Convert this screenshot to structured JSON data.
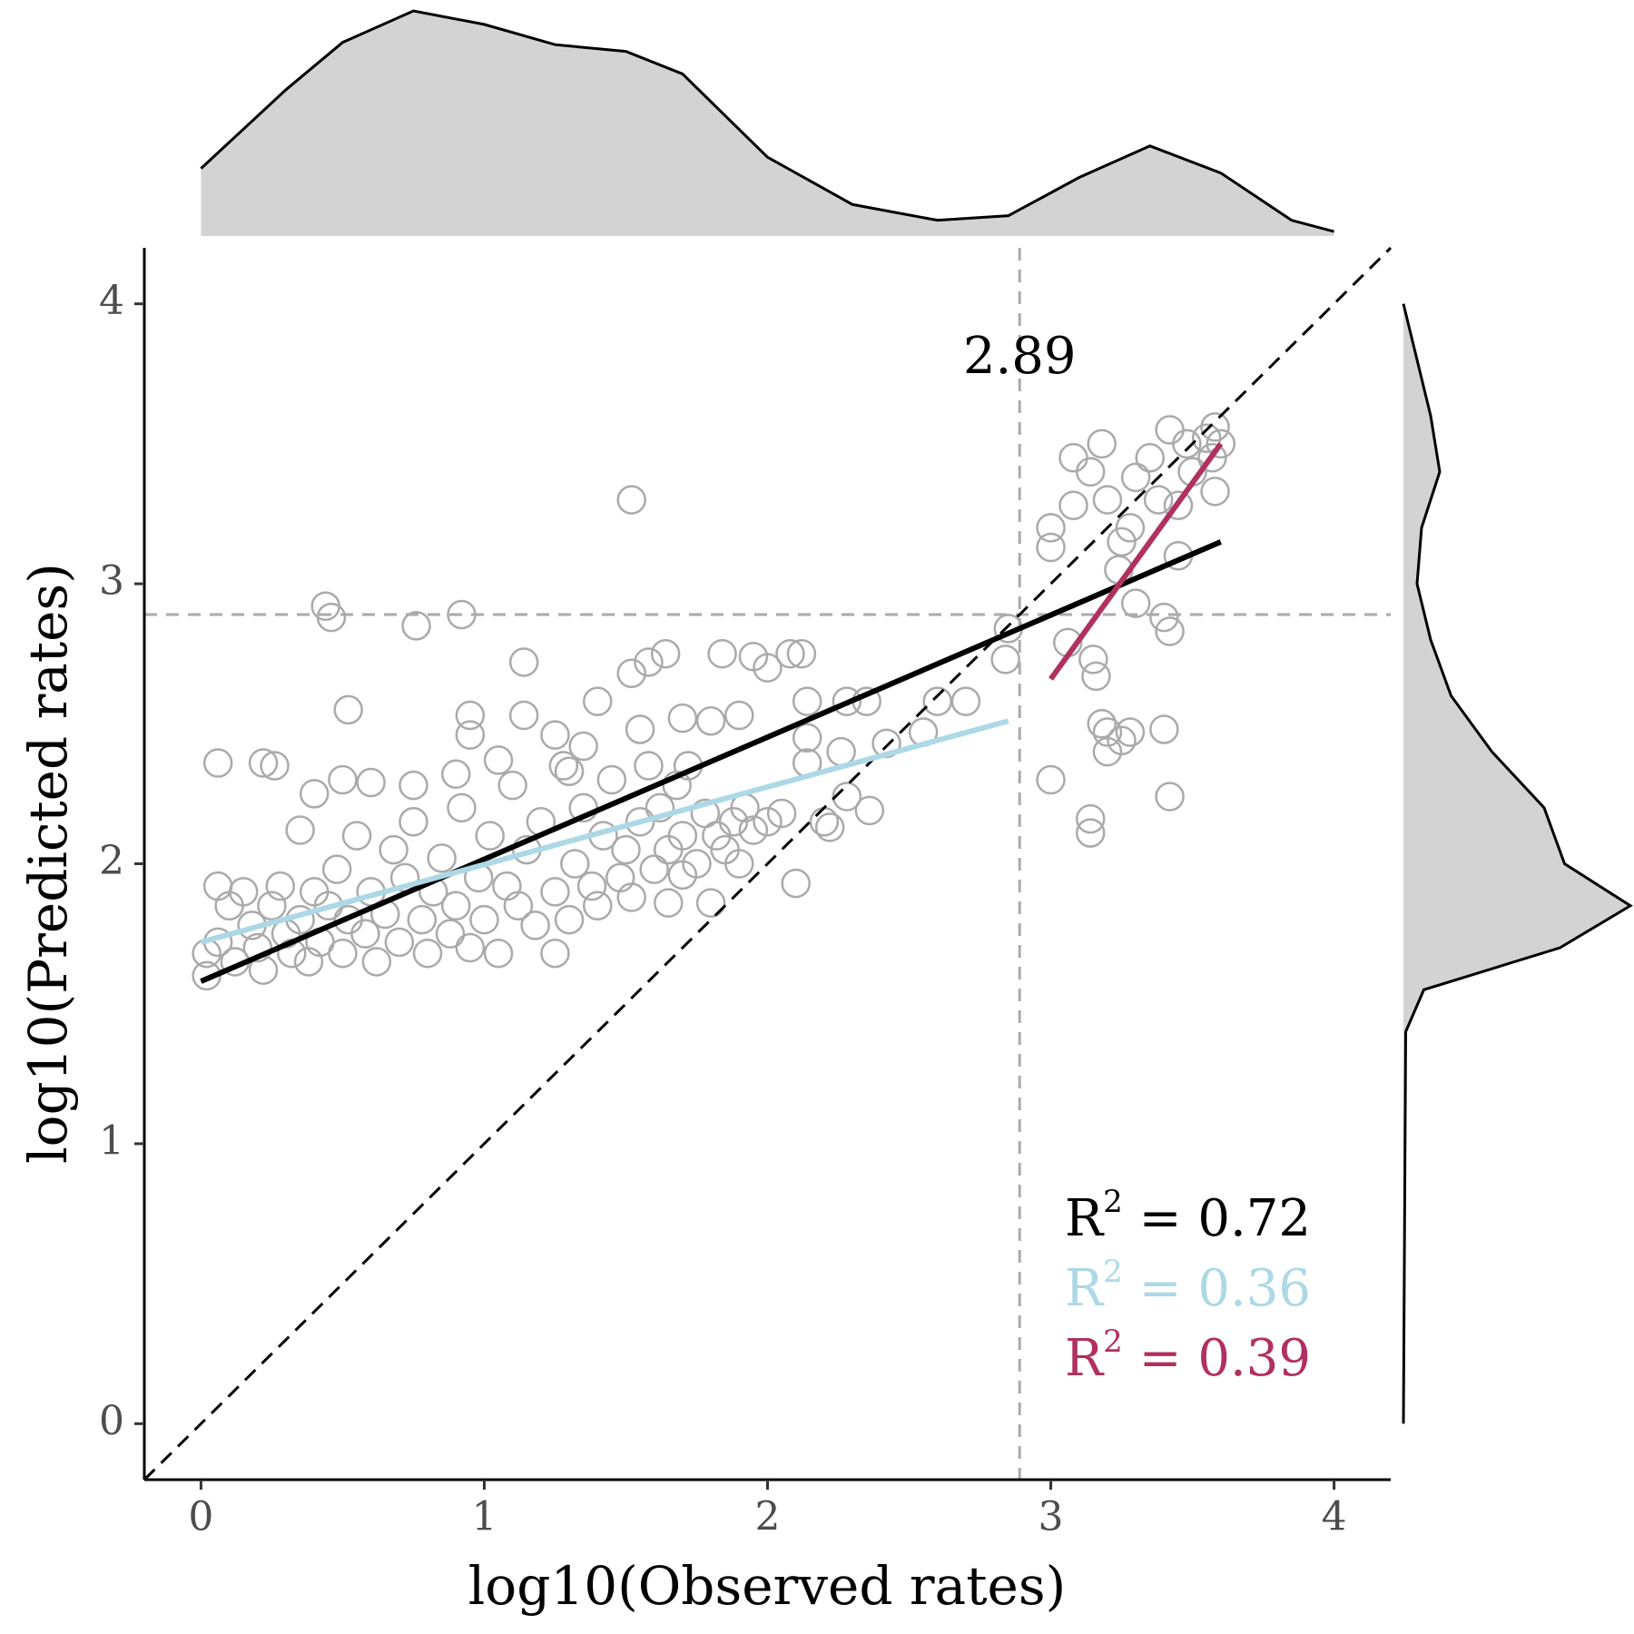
{
  "chart_data": {
    "type": "scatter",
    "x_label": "log10(Observed rates)",
    "y_label": "log10(Predicted rates)",
    "xlim": [
      -0.2,
      4.2
    ],
    "ylim": [
      -0.2,
      4.2
    ],
    "xticks": [
      0,
      1,
      2,
      3,
      4
    ],
    "yticks": [
      0,
      1,
      2,
      3,
      4
    ],
    "point_color": "#aaaaaa",
    "x": [
      1.52,
      0.44,
      0.46,
      0.76,
      0.92,
      1.14,
      0.52,
      0.06,
      0.22,
      0.26,
      1.58,
      1.64,
      1.52,
      1.84,
      1.95,
      2.0,
      2.08,
      2.12,
      2.85,
      2.84,
      2.14,
      2.28,
      2.35,
      2.6,
      2.7,
      2.55,
      2.42,
      2.14,
      2.14,
      2.26,
      2.05,
      2.28,
      2.2,
      2.36,
      2.22,
      1.9,
      2.1,
      1.8,
      1.7,
      1.65,
      0.35,
      1.14,
      0.95,
      0.95,
      1.4,
      1.25,
      1.35,
      1.8,
      1.9,
      1.55,
      1.7,
      1.05,
      0.9,
      0.75,
      0.5,
      0.6,
      0.4,
      1.3,
      3.0,
      3.0,
      3.0,
      3.06,
      3.08,
      3.08,
      3.14,
      3.18,
      3.2,
      3.25,
      3.24,
      3.28,
      3.3,
      3.35,
      3.38,
      3.42,
      3.45,
      3.48,
      3.5,
      3.55,
      3.58,
      3.6,
      3.57,
      3.58,
      3.45,
      3.42,
      3.4,
      3.3,
      3.15,
      3.16,
      3.18,
      3.2,
      3.25,
      3.2,
      3.28,
      3.4,
      3.42,
      3.14,
      3.14,
      0.02,
      0.02,
      0.06,
      0.06,
      0.1,
      0.12,
      0.15,
      0.18,
      0.2,
      0.22,
      0.25,
      0.28,
      0.3,
      0.32,
      0.35,
      0.38,
      0.4,
      0.42,
      0.45,
      0.48,
      0.5,
      0.52,
      0.55,
      0.58,
      0.6,
      0.62,
      0.65,
      0.68,
      0.7,
      0.72,
      0.75,
      0.78,
      0.8,
      0.82,
      0.85,
      0.88,
      0.9,
      0.92,
      0.95,
      0.98,
      1.0,
      1.02,
      1.05,
      1.08,
      1.1,
      1.12,
      1.15,
      1.18,
      1.2,
      1.25,
      1.28,
      1.3,
      1.32,
      1.35,
      1.38,
      1.4,
      1.42,
      1.45,
      1.48,
      1.5,
      1.52,
      1.55,
      1.58,
      1.6,
      1.62,
      1.65,
      1.68,
      1.7,
      1.72,
      1.75,
      1.78,
      1.82,
      1.85,
      1.88,
      1.92,
      1.95,
      2.0,
      1.25
    ],
    "y": [
      3.3,
      2.92,
      2.88,
      2.85,
      2.89,
      2.72,
      2.55,
      2.36,
      2.36,
      2.35,
      2.72,
      2.75,
      2.68,
      2.75,
      2.74,
      2.7,
      2.75,
      2.75,
      2.84,
      2.73,
      2.58,
      2.58,
      2.58,
      2.58,
      2.58,
      2.47,
      2.43,
      2.45,
      2.36,
      2.4,
      2.18,
      2.24,
      2.15,
      2.19,
      2.13,
      2.0,
      1.93,
      1.86,
      1.96,
      1.86,
      2.12,
      2.53,
      2.53,
      2.46,
      2.58,
      2.46,
      2.42,
      2.51,
      2.53,
      2.48,
      2.52,
      2.37,
      2.32,
      2.28,
      2.3,
      2.29,
      2.25,
      2.33,
      2.3,
      3.2,
      3.13,
      2.79,
      3.28,
      3.45,
      3.4,
      3.5,
      3.3,
      3.15,
      3.05,
      3.2,
      3.38,
      3.45,
      3.3,
      3.55,
      3.28,
      3.5,
      3.4,
      3.52,
      3.56,
      3.5,
      3.45,
      3.33,
      3.1,
      2.83,
      2.88,
      2.93,
      2.73,
      2.67,
      2.5,
      2.47,
      2.44,
      2.4,
      2.47,
      2.48,
      2.24,
      2.16,
      2.11,
      1.6,
      1.68,
      1.72,
      1.92,
      1.85,
      1.65,
      1.9,
      1.78,
      1.7,
      1.62,
      1.85,
      1.92,
      1.75,
      1.68,
      1.8,
      1.65,
      1.9,
      1.72,
      1.85,
      1.98,
      1.68,
      1.8,
      2.1,
      1.75,
      1.9,
      1.65,
      1.82,
      2.05,
      1.72,
      1.95,
      2.15,
      1.8,
      1.68,
      1.9,
      2.02,
      1.75,
      1.85,
      2.2,
      1.7,
      1.95,
      1.8,
      2.1,
      1.68,
      1.92,
      2.28,
      1.85,
      2.05,
      1.78,
      2.15,
      1.9,
      2.35,
      1.8,
      2.0,
      2.2,
      1.92,
      1.85,
      2.1,
      2.3,
      1.95,
      2.05,
      1.88,
      2.15,
      2.35,
      1.98,
      2.2,
      2.05,
      2.28,
      2.1,
      2.35,
      2.0,
      2.18,
      2.1,
      2.05,
      2.15,
      2.2,
      2.12,
      2.15,
      1.68
    ],
    "fits": [
      {
        "color": "#000000",
        "x": [
          0,
          3.6
        ],
        "y": [
          1.58,
          3.15
        ]
      },
      {
        "color": "#add8e6",
        "x": [
          0,
          2.85
        ],
        "y": [
          1.72,
          2.51
        ]
      },
      {
        "color": "#b03060",
        "x": [
          3.0,
          3.6
        ],
        "y": [
          2.66,
          3.5
        ]
      }
    ],
    "identity_line": true,
    "ref_line": 2.89,
    "ref_label": "2.89",
    "annotations": [
      {
        "base": "R",
        "sup": "2",
        "text": " = 0.72",
        "color": "#000000"
      },
      {
        "base": "R",
        "sup": "2",
        "text": " = 0.36",
        "color": "#add8e6"
      },
      {
        "base": "R",
        "sup": "2",
        "text": " = 0.39",
        "color": "#b03060"
      }
    ],
    "density_color": "#d3d3d3",
    "top_density": {
      "x": [
        0,
        0.3,
        0.5,
        0.75,
        1.0,
        1.25,
        1.5,
        1.7,
        2.0,
        2.3,
        2.6,
        2.85,
        3.1,
        3.35,
        3.6,
        3.85,
        4.0
      ],
      "values": [
        0.3,
        0.65,
        0.86,
        1.0,
        0.94,
        0.85,
        0.82,
        0.72,
        0.35,
        0.14,
        0.07,
        0.09,
        0.26,
        0.4,
        0.28,
        0.07,
        0.02
      ]
    },
    "right_density": {
      "y": [
        0,
        1.4,
        1.55,
        1.7,
        1.85,
        2.0,
        2.2,
        2.4,
        2.6,
        2.8,
        3.0,
        3.2,
        3.4,
        3.6,
        4.0
      ],
      "values": [
        0,
        0.01,
        0.09,
        0.69,
        1.0,
        0.71,
        0.62,
        0.39,
        0.21,
        0.12,
        0.06,
        0.08,
        0.16,
        0.12,
        0
      ]
    }
  }
}
